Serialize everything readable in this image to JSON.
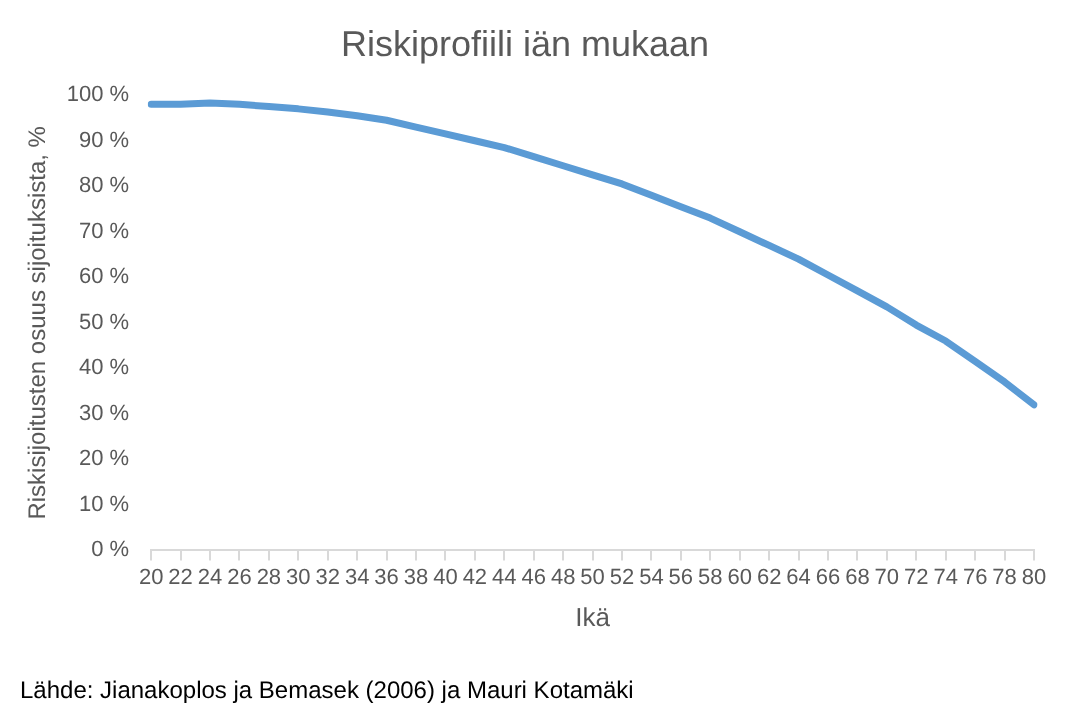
{
  "chart_data": {
    "type": "line",
    "title": "Riskiprofiili iän mukaan",
    "xlabel": "Ikä",
    "ylabel": "Riskisijoitusten osuus sijoituksista, %",
    "categories": [
      "20",
      "22",
      "24",
      "26",
      "28",
      "30",
      "32",
      "34",
      "36",
      "38",
      "40",
      "42",
      "44",
      "46",
      "48",
      "50",
      "52",
      "54",
      "56",
      "58",
      "60",
      "62",
      "64",
      "66",
      "68",
      "70",
      "72",
      "74",
      "76",
      "78",
      "80"
    ],
    "series": [
      {
        "color": "#5b9bd5",
        "values": [
          98,
          98,
          98.3,
          98,
          97.5,
          97,
          96.3,
          95.5,
          94.5,
          93,
          91.5,
          90,
          88.5,
          86.5,
          84.5,
          82.5,
          80.5,
          78,
          75.5,
          73,
          70,
          67,
          64,
          60.5,
          57,
          53.5,
          49.5,
          46,
          41.5,
          37,
          32
        ]
      }
    ],
    "ylim": [
      0,
      100
    ],
    "yticks": [
      {
        "value": 0,
        "label": "0 %"
      },
      {
        "value": 10,
        "label": "10 %"
      },
      {
        "value": 20,
        "label": "20 %"
      },
      {
        "value": 30,
        "label": "30 %"
      },
      {
        "value": 40,
        "label": "40 %"
      },
      {
        "value": 50,
        "label": "50 %"
      },
      {
        "value": 60,
        "label": "60 %"
      },
      {
        "value": 70,
        "label": "70 %"
      },
      {
        "value": 80,
        "label": "80 %"
      },
      {
        "value": 90,
        "label": "90 %"
      },
      {
        "value": 100,
        "label": "100 %"
      }
    ],
    "grid": false,
    "legend": false,
    "marker": "none",
    "line_style": "solid",
    "annotations": [
      "Lähde: Jianakoplos ja Bemasek (2006) ja Mauri Kotamäki"
    ]
  }
}
